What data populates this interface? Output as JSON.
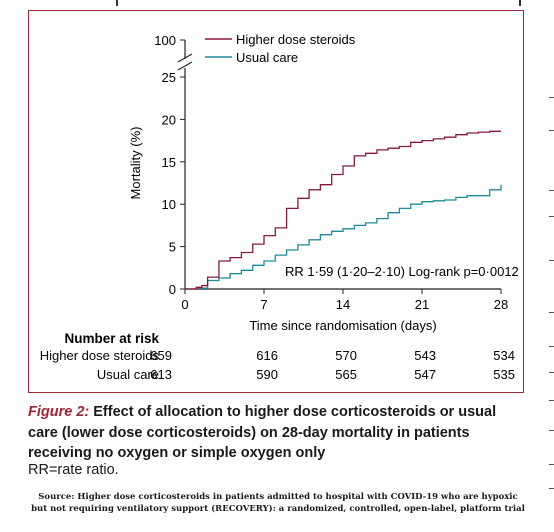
{
  "chart_data": {
    "type": "line",
    "title": "",
    "xlabel": "Time since randomisation (days)",
    "ylabel": "Mortality (%)",
    "xlim": [
      0,
      28
    ],
    "ylim": [
      0,
      25
    ],
    "x_ticks": [
      "0",
      "7",
      "14",
      "21",
      "28"
    ],
    "y_ticks": [
      "0",
      "5",
      "10",
      "15",
      "20",
      "25",
      "100"
    ],
    "axis_break": true,
    "grid": false,
    "legend": "top",
    "annotation": "RR 1·59 (1·20–2·10) Log-rank p=0·0012",
    "series": [
      {
        "name": "Higher dose steroids",
        "color": "#8b1a3a",
        "x": [
          0,
          1,
          1.5,
          2,
          3,
          4,
          5,
          6,
          7,
          8,
          9,
          10,
          11,
          12,
          13,
          14,
          15,
          16,
          17,
          18,
          19,
          20,
          21,
          22,
          23,
          24,
          25,
          26,
          27,
          28
        ],
        "y": [
          0,
          0.2,
          0.4,
          1.4,
          3.3,
          3.7,
          4.3,
          5.3,
          6.3,
          7.2,
          9.5,
          10.7,
          11.7,
          12.3,
          13.5,
          14.5,
          15.7,
          16.0,
          16.4,
          16.6,
          16.8,
          17.3,
          17.5,
          17.7,
          17.9,
          18.2,
          18.4,
          18.5,
          18.6,
          18.6
        ]
      },
      {
        "name": "Usual care",
        "color": "#1f8a9e",
        "x": [
          0,
          1,
          2,
          3,
          4,
          5,
          6,
          7,
          8,
          9,
          10,
          11,
          12,
          13,
          14,
          15,
          16,
          17,
          18,
          19,
          20,
          21,
          22,
          23,
          24,
          25,
          26,
          27,
          28
        ],
        "y": [
          0,
          0.1,
          1.0,
          1.3,
          1.8,
          2.2,
          2.8,
          3.3,
          4.0,
          4.6,
          5.2,
          5.8,
          6.4,
          6.8,
          7.1,
          7.5,
          7.8,
          8.3,
          9.0,
          9.5,
          10.0,
          10.3,
          10.4,
          10.5,
          10.8,
          11.0,
          11.0,
          11.7,
          12.3
        ]
      }
    ]
  },
  "risk_table": {
    "header": "Number at risk",
    "rows": [
      {
        "label": "Higher dose steroids",
        "values": [
          "659",
          "616",
          "570",
          "543",
          "534"
        ]
      },
      {
        "label": "Usual care",
        "values": [
          "613",
          "590",
          "565",
          "547",
          "535"
        ]
      }
    ]
  },
  "caption": {
    "figure_label": "Figure 2:",
    "title": "Effect of allocation to higher dose corticosteroids or usual care (lower dose corticosteroids) on 28-day mortality in patients receiving no oxygen or simple oxygen only",
    "note": "RR=rate ratio."
  },
  "source": {
    "line1": "Source: Higher dose corticosteroids in patients admitted to hospital with COVID-19 who are hypoxic",
    "line2": "but not requiring ventilatory support (RECOVERY): a randomized, controlled, open-label, platform trial"
  },
  "colors": {
    "frame": "#9e2a3c",
    "steroids": "#8b1a3a",
    "usual": "#1f8a9e",
    "caption_label": "#a02438"
  }
}
